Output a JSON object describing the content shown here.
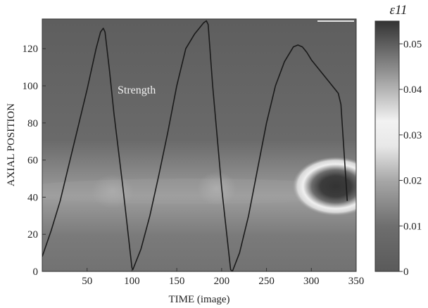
{
  "chart_data": {
    "type": "heatmap",
    "xlabel": "TIME (image)",
    "ylabel": "AXIAL POSITION",
    "xlim": [
      0,
      350
    ],
    "ylim": [
      0,
      136
    ],
    "xticks": [
      50,
      100,
      150,
      200,
      250,
      300,
      350
    ],
    "yticks": [
      0,
      20,
      40,
      60,
      80,
      100,
      120
    ],
    "annotation": "Strength",
    "colorbar": {
      "title": "ε11",
      "range": [
        0,
        0.055
      ],
      "ticks": [
        "0",
        "0.01",
        "0.02",
        "0.03",
        "0.04",
        "0.05"
      ],
      "tick_values": [
        0,
        0.01,
        0.02,
        0.03,
        0.04,
        0.05
      ]
    },
    "series": [
      {
        "x": [
          0,
          10,
          20,
          30,
          40,
          50,
          60,
          65,
          68,
          70,
          75,
          80,
          90,
          100,
          101,
          110,
          120,
          130,
          140,
          150,
          160,
          170,
          175,
          180,
          183,
          185,
          190,
          200,
          210,
          212,
          220,
          230,
          240,
          250,
          260,
          270,
          280,
          285,
          290,
          295,
          300,
          310,
          320,
          330,
          333,
          340
        ],
        "y": [
          8,
          22,
          38,
          58,
          78,
          98,
          120,
          129,
          131,
          129,
          108,
          85,
          45,
          2,
          1,
          12,
          30,
          52,
          75,
          100,
          120,
          128,
          131,
          134,
          135,
          133,
          100,
          45,
          1,
          0,
          10,
          30,
          55,
          80,
          100,
          113,
          121,
          122,
          121,
          118,
          114,
          108,
          102,
          96,
          90,
          38
        ]
      }
    ]
  }
}
